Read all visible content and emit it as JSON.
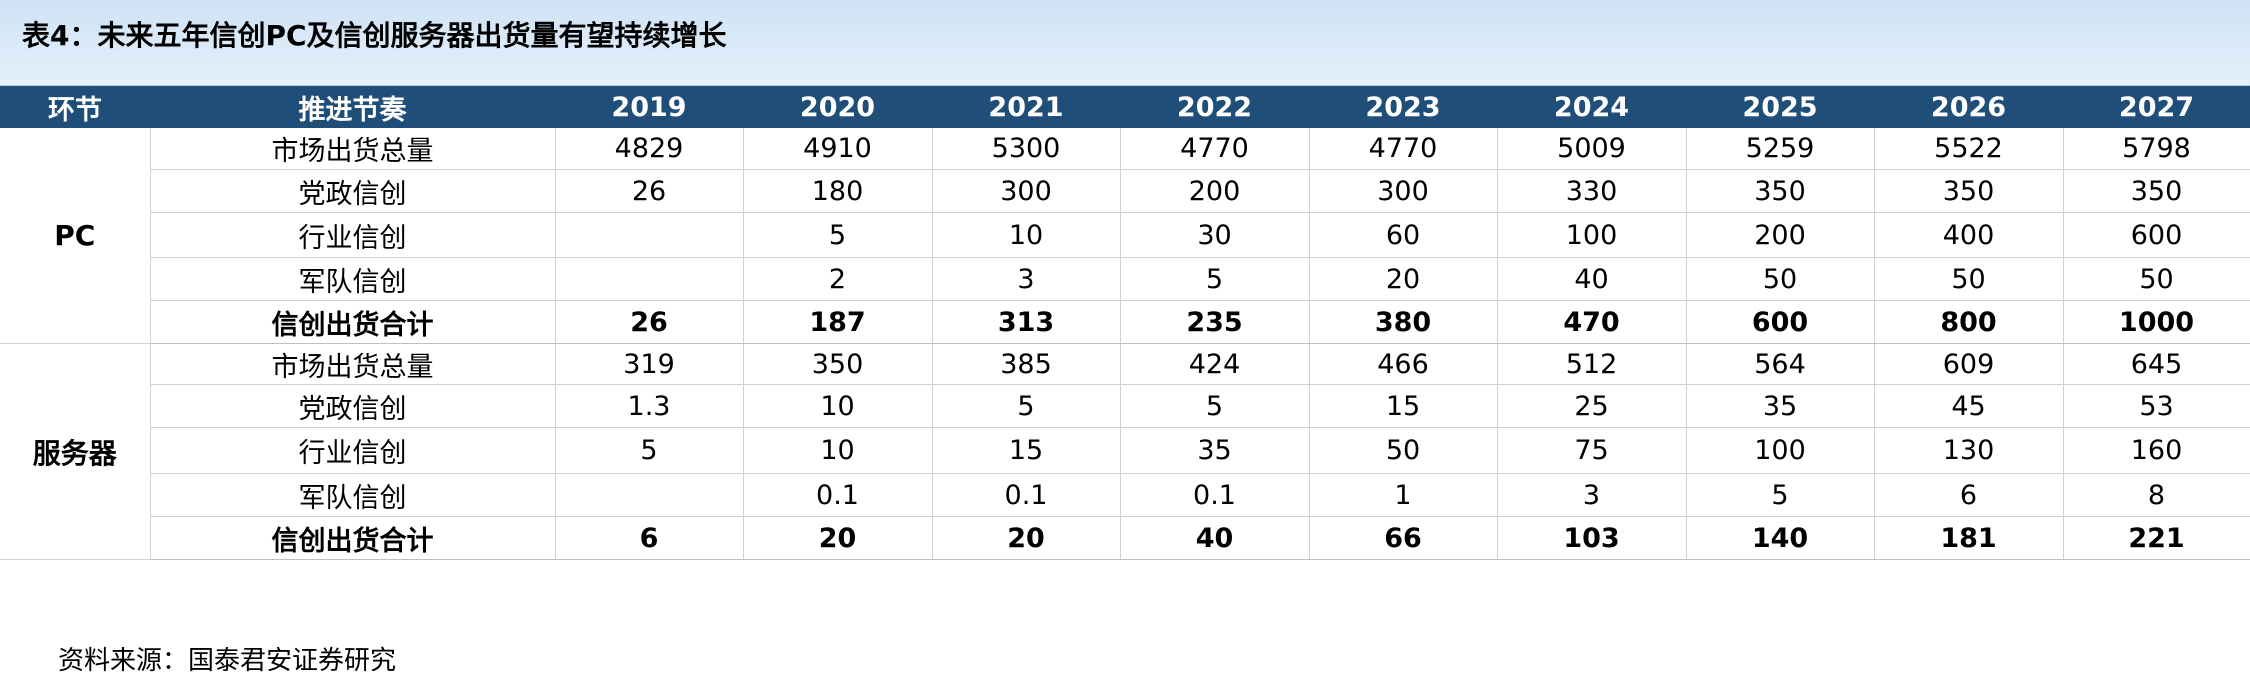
{
  "title": "表4：未来五年信创PC及信创服务器出货量有望持续增长",
  "header": {
    "col_segment": "环节",
    "col_metric": "推进节奏",
    "years": [
      "2019",
      "2020",
      "2021",
      "2022",
      "2023",
      "2024",
      "2025",
      "2026",
      "2027"
    ]
  },
  "sections": [
    {
      "name": "PC",
      "rows": [
        {
          "label": "市场出货总量",
          "bold": false,
          "values": [
            "4829",
            "4910",
            "5300",
            "4770",
            "4770",
            "5009",
            "5259",
            "5522",
            "5798"
          ]
        },
        {
          "label": "党政信创",
          "bold": false,
          "values": [
            "26",
            "180",
            "300",
            "200",
            "300",
            "330",
            "350",
            "350",
            "350"
          ]
        },
        {
          "label": "行业信创",
          "bold": false,
          "values": [
            "",
            "5",
            "10",
            "30",
            "60",
            "100",
            "200",
            "400",
            "600"
          ]
        },
        {
          "label": "军队信创",
          "bold": false,
          "values": [
            "",
            "2",
            "3",
            "5",
            "20",
            "40",
            "50",
            "50",
            "50"
          ]
        },
        {
          "label": "信创出货合计",
          "bold": true,
          "values": [
            "26",
            "187",
            "313",
            "235",
            "380",
            "470",
            "600",
            "800",
            "1000"
          ]
        }
      ]
    },
    {
      "name": "服务器",
      "rows": [
        {
          "label": "市场出货总量",
          "bold": false,
          "values": [
            "319",
            "350",
            "385",
            "424",
            "466",
            "512",
            "564",
            "609",
            "645"
          ]
        },
        {
          "label": "党政信创",
          "bold": false,
          "values": [
            "1.3",
            "10",
            "5",
            "5",
            "15",
            "25",
            "35",
            "45",
            "53"
          ]
        },
        {
          "label": "行业信创",
          "bold": false,
          "values": [
            "5",
            "10",
            "15",
            "35",
            "50",
            "75",
            "100",
            "130",
            "160"
          ]
        },
        {
          "label": "军队信创",
          "bold": false,
          "values": [
            "",
            "0.1",
            "0.1",
            "0.1",
            "1",
            "3",
            "5",
            "6",
            "8"
          ]
        },
        {
          "label": "信创出货合计",
          "bold": true,
          "values": [
            "6",
            "20",
            "20",
            "40",
            "66",
            "103",
            "140",
            "181",
            "221"
          ]
        }
      ]
    }
  ],
  "source": "资料来源：国泰君安证券研究"
}
